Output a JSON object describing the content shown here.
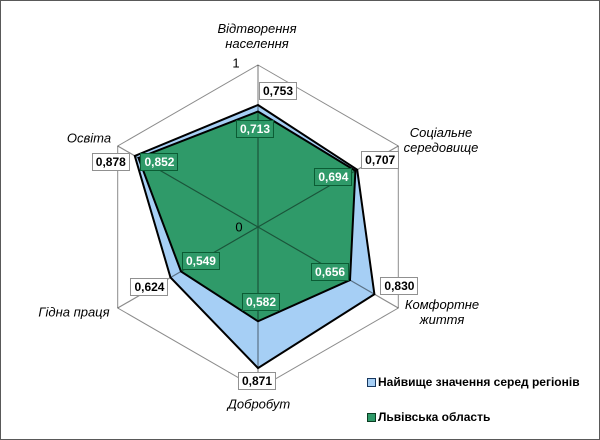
{
  "chart_data": {
    "type": "radar",
    "title": "",
    "range": [
      0,
      1
    ],
    "grid": "outer-ring-and-spokes",
    "tick_labels": {
      "center": "0",
      "max": "1"
    },
    "categories": [
      {
        "label": "Відтворення населення",
        "lines": [
          "Відтворення",
          "населення"
        ]
      },
      {
        "label": "Соціальне середовище",
        "lines": [
          "Соціальне",
          "середовище"
        ]
      },
      {
        "label": "Комфортне життя",
        "lines": [
          "Комфортне",
          "життя"
        ]
      },
      {
        "label": "Добробут",
        "lines": [
          "Добробут"
        ]
      },
      {
        "label": "Гідна праця",
        "lines": [
          "Гідна праця"
        ]
      },
      {
        "label": "Освіта",
        "lines": [
          "Освіта"
        ]
      }
    ],
    "series": [
      {
        "name": "Найвище значення серед регіонів",
        "values": [
          0.753,
          0.707,
          0.83,
          0.871,
          0.624,
          0.878
        ],
        "value_labels": [
          "0,753",
          "0,707",
          "0,830",
          "0,871",
          "0,624",
          "0,878"
        ],
        "fill": "#A6CFF5",
        "stroke": "#000000"
      },
      {
        "name": "Львівська область",
        "values": [
          0.713,
          0.694,
          0.656,
          0.582,
          0.549,
          0.852
        ],
        "value_labels": [
          "0,713",
          "0,694",
          "0,656",
          "0,582",
          "0,549",
          "0,852"
        ],
        "fill": "#2F9A69",
        "stroke": "#000000"
      }
    ],
    "legend_position": "bottom-right",
    "colors": {
      "axis_line": "#8C8C8C",
      "series_border": "#000000",
      "frame_border": "#595959"
    }
  }
}
